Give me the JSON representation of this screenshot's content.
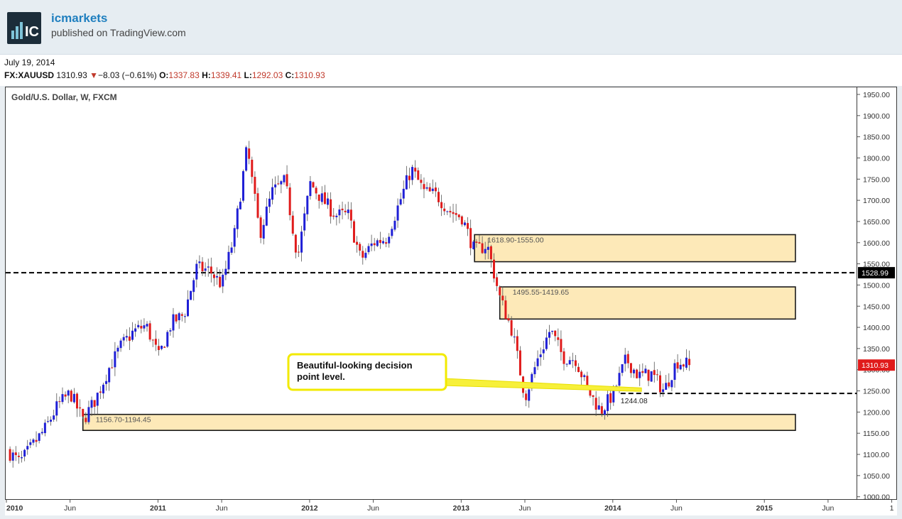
{
  "header": {
    "brand": "icmarkets",
    "published": "published on TradingView.com",
    "logo_text": "IC"
  },
  "info": {
    "date": "July 19, 2014",
    "symbol": "FX:XAUUSD",
    "last": "1310.93",
    "change": "−8.03 (−0.61%)",
    "o_label": "O:",
    "o": "1337.83",
    "h_label": "H:",
    "h": "1339.41",
    "l_label": "L:",
    "l": "1292.03",
    "c_label": "C:",
    "c": "1310.93"
  },
  "chart_data": {
    "type": "candlestick",
    "title": "Gold/U.S. Dollar, W, FXCM",
    "ylim": [
      1000,
      1950
    ],
    "yticks": [
      "1000.00",
      "1050.00",
      "1100.00",
      "1150.00",
      "1200.00",
      "1250.00",
      "1300.00",
      "1350.00",
      "1400.00",
      "1450.00",
      "1500.00",
      "1550.00",
      "1600.00",
      "1650.00",
      "1700.00",
      "1750.00",
      "1800.00",
      "1850.00",
      "1900.00",
      "1950.00"
    ],
    "xticks": [
      "2010",
      "Jun",
      "2011",
      "Jun",
      "2012",
      "Jun",
      "2013",
      "Jun",
      "2014",
      "Jun",
      "2015",
      "Jun",
      "1"
    ],
    "up_color": "#1f1fd6",
    "down_color": "#e01b1b",
    "close_path": [
      [
        "2010-01",
        1110
      ],
      [
        "2010-02",
        1080
      ],
      [
        "2010-03",
        1120
      ],
      [
        "2010-04",
        1160
      ],
      [
        "2010-05",
        1215
      ],
      [
        "2010-06",
        1245
      ],
      [
        "2010-07",
        1180
      ],
      [
        "2010-08",
        1230
      ],
      [
        "2010-09",
        1300
      ],
      [
        "2010-10",
        1355
      ],
      [
        "2010-11",
        1390
      ],
      [
        "2010-12",
        1405
      ],
      [
        "2011-01",
        1330
      ],
      [
        "2011-02",
        1410
      ],
      [
        "2011-03",
        1430
      ],
      [
        "2011-04",
        1540
      ],
      [
        "2011-05",
        1535
      ],
      [
        "2011-06",
        1500
      ],
      [
        "2011-07",
        1620
      ],
      [
        "2011-08",
        1825
      ],
      [
        "2011-09",
        1620
      ],
      [
        "2011-10",
        1720
      ],
      [
        "2011-11",
        1745
      ],
      [
        "2011-12",
        1565
      ],
      [
        "2012-01",
        1740
      ],
      [
        "2012-02",
        1700
      ],
      [
        "2012-03",
        1665
      ],
      [
        "2012-04",
        1665
      ],
      [
        "2012-05",
        1560
      ],
      [
        "2012-06",
        1600
      ],
      [
        "2012-07",
        1610
      ],
      [
        "2012-08",
        1690
      ],
      [
        "2012-09",
        1775
      ],
      [
        "2012-10",
        1720
      ],
      [
        "2012-11",
        1712
      ],
      [
        "2012-12",
        1675
      ],
      [
        "2013-01",
        1660
      ],
      [
        "2013-02",
        1580
      ],
      [
        "2013-03",
        1595
      ],
      [
        "2013-04",
        1470
      ],
      [
        "2013-05",
        1390
      ],
      [
        "2013-06",
        1235
      ],
      [
        "2013-07",
        1325
      ],
      [
        "2013-08",
        1395
      ],
      [
        "2013-09",
        1330
      ],
      [
        "2013-10",
        1325
      ],
      [
        "2013-11",
        1250
      ],
      [
        "2013-12",
        1202
      ],
      [
        "2014-01",
        1245
      ],
      [
        "2014-02",
        1325
      ],
      [
        "2014-03",
        1285
      ],
      [
        "2014-04",
        1290
      ],
      [
        "2014-05",
        1250
      ],
      [
        "2014-06",
        1320
      ],
      [
        "2014-07",
        1310.93
      ]
    ],
    "zones": [
      {
        "label": "1618.90-1555.00",
        "low": 1555.0,
        "high": 1618.9,
        "from": "2013-02"
      },
      {
        "label": "1495.55-1419.65",
        "low": 1419.65,
        "high": 1495.55,
        "from": "2013-04"
      },
      {
        "label": "1156.70-1194.45",
        "low": 1156.7,
        "high": 1194.45,
        "from": "2010-07"
      }
    ],
    "levels": [
      {
        "value": 1528.99,
        "label": "1528.99",
        "style": "dashed",
        "color": "#000000"
      },
      {
        "value": 1244.08,
        "label": "1244.08",
        "style": "dashed",
        "color": "#000000",
        "from": "2014-01"
      }
    ],
    "price_tag": {
      "value": 1310.93,
      "label": "1310.93",
      "color": "#e01b1b"
    },
    "callout": {
      "lines": [
        "Beautiful-looking decision",
        "point level."
      ],
      "points_to": "2014-02"
    }
  }
}
